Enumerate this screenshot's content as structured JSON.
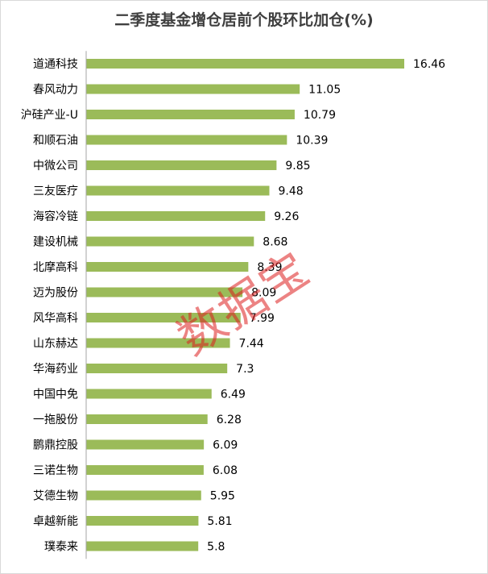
{
  "chart_data": {
    "type": "bar",
    "orientation": "horizontal",
    "title": "二季度基金增仓居前个股环比加仓(%)",
    "categories": [
      "道通科技",
      "春风动力",
      "沪硅产业-U",
      "和顺石油",
      "中微公司",
      "三友医疗",
      "海容冷链",
      "建设机械",
      "北摩高科",
      "迈为股份",
      "风华高科",
      "山东赫达",
      "华海药业",
      "中国中免",
      "一拖股份",
      "鹏鼎控股",
      "三诺生物",
      "艾德生物",
      "卓越新能",
      "璞泰来"
    ],
    "values": [
      16.46,
      11.05,
      10.79,
      10.39,
      9.85,
      9.48,
      9.26,
      8.68,
      8.39,
      8.09,
      7.99,
      7.44,
      7.3,
      6.49,
      6.28,
      6.09,
      6.08,
      5.95,
      5.81,
      5.8
    ],
    "value_labels": [
      "16.46",
      "11.05",
      "10.79",
      "10.39",
      "9.85",
      "9.48",
      "9.26",
      "8.68",
      "8.39",
      "8.09",
      "7.99",
      "7.44",
      "7.3",
      "6.49",
      "6.28",
      "6.09",
      "6.08",
      "5.95",
      "5.81",
      "5.8"
    ],
    "xlim": [
      0,
      17.5
    ],
    "grid": false,
    "legend": "none",
    "bar_color": "#9bbb59",
    "axis_color": "#a6a6a6"
  },
  "watermark": "数据宝"
}
